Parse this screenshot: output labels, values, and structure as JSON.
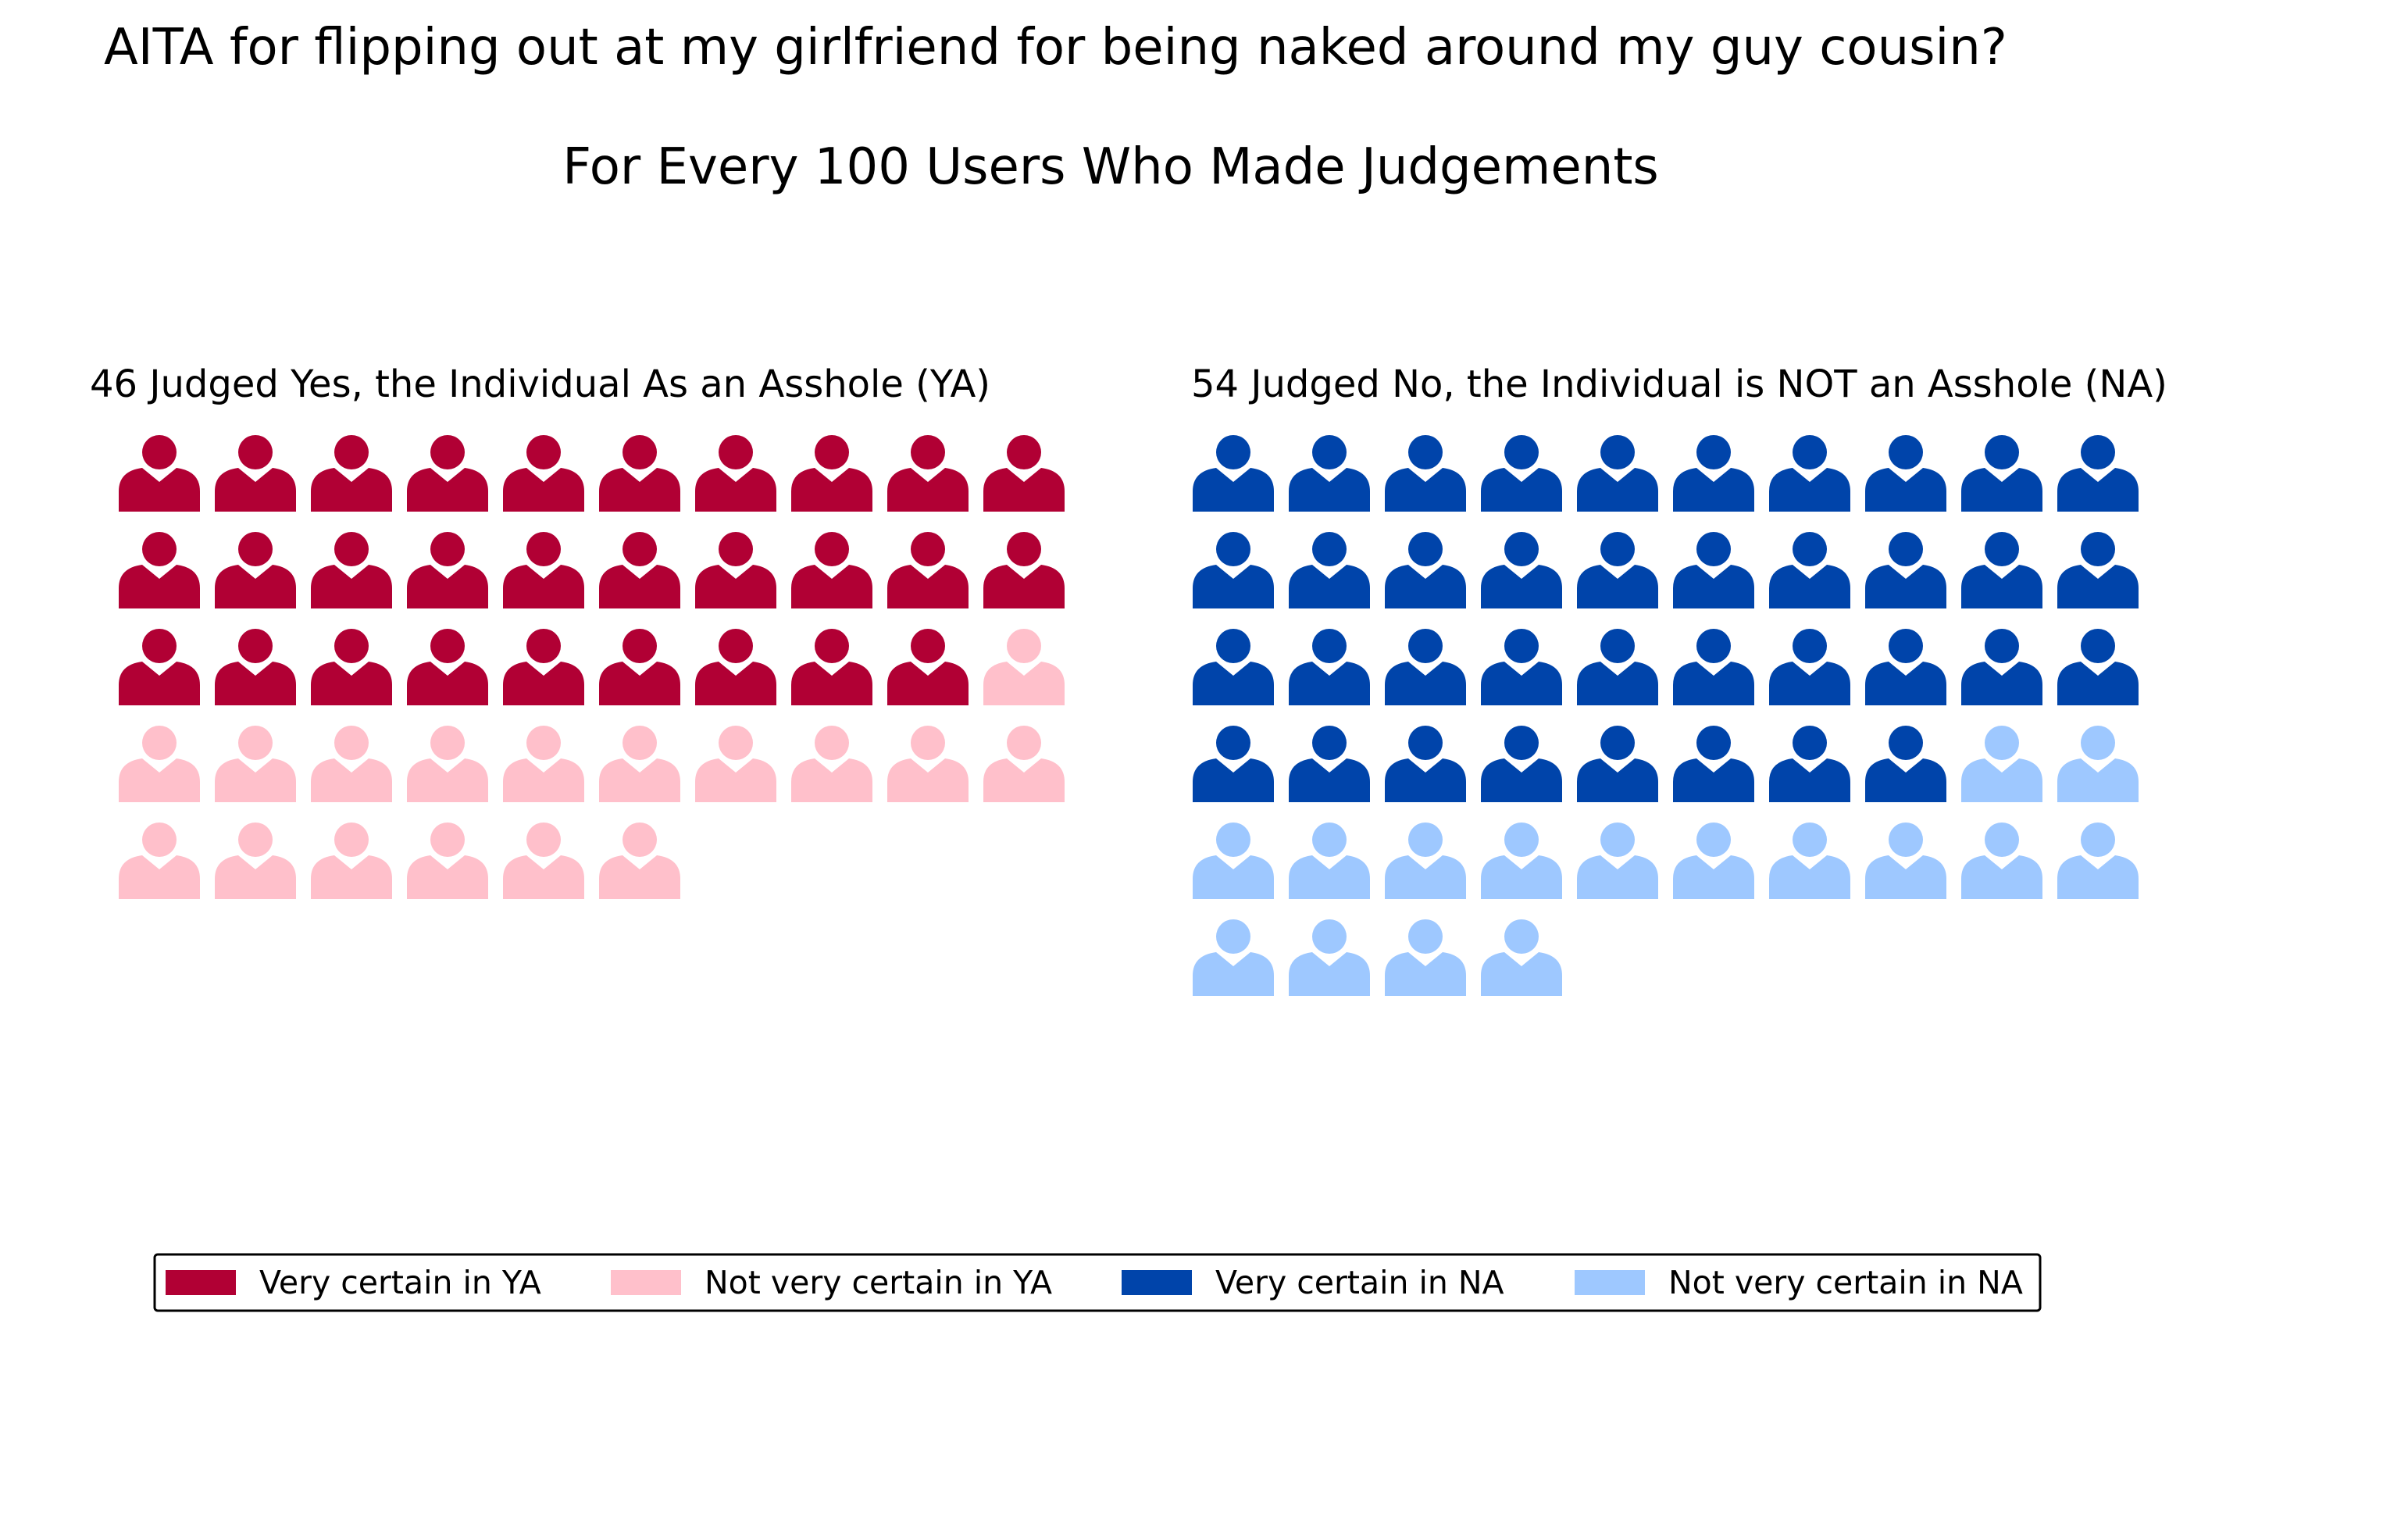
{
  "chart_data": {
    "type": "pictograph",
    "title": "AITA for flipping out at my girlfriend for being naked around my guy cousin?",
    "subtitle": "For Every 100 Users Who Made Judgements",
    "icon": "person-icon",
    "icons_per_row": 10,
    "panels": [
      {
        "id": "ya",
        "title": "46 Judged Yes, the Individual As an Asshole (YA)",
        "total": 46,
        "groups": [
          {
            "label": "Very certain in YA",
            "count": 29,
            "color": "#b10034"
          },
          {
            "label": "Not very certain in YA",
            "count": 17,
            "color": "#ffc0cb"
          }
        ]
      },
      {
        "id": "na",
        "title": "54 Judged No, the Individual is NOT an Asshole (NA)",
        "total": 54,
        "groups": [
          {
            "label": "Very certain in NA",
            "count": 38,
            "color": "#0044aa"
          },
          {
            "label": "Not very certain in NA",
            "count": 16,
            "color": "#9ec8ff"
          }
        ]
      }
    ],
    "legend": {
      "placement": "bottom",
      "items": [
        {
          "label": "Very certain in YA",
          "color": "#b10034"
        },
        {
          "label": "Not very certain in YA",
          "color": "#ffc0cb"
        },
        {
          "label": "Very certain in NA",
          "color": "#0044aa"
        },
        {
          "label": "Not very certain in NA",
          "color": "#9ec8ff"
        }
      ]
    }
  }
}
